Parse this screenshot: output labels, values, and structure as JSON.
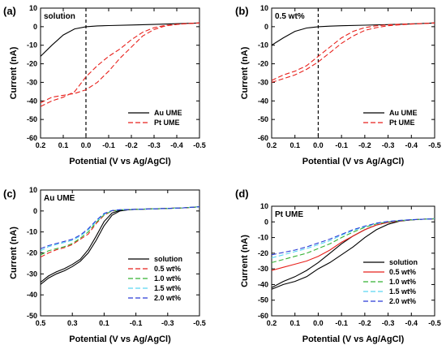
{
  "chart_data": [
    {
      "panel_label": "(a)",
      "type": "line",
      "inset_label": "solution",
      "xlabel": "Potential (V vs Ag/AgCl)",
      "ylabel": "Current (nA)",
      "xlim": [
        0.2,
        -0.5
      ],
      "ylim": [
        -60,
        10
      ],
      "xticks": [
        "0.2",
        "0.1",
        "0.0",
        "-0.1",
        "-0.2",
        "-0.3",
        "-0.4",
        "-0.5"
      ],
      "yticks": [
        "10",
        "0",
        "-10",
        "-20",
        "-30",
        "-40",
        "-50",
        "-60"
      ],
      "vline_x": 0.0,
      "legend_position": "bottom-right",
      "series": [
        {
          "name": "Au UME",
          "color": "#000000",
          "dash": "solid",
          "x": [
            0.2,
            0.15,
            0.1,
            0.05,
            0.0,
            -0.05,
            -0.1,
            -0.2,
            -0.3,
            -0.4,
            -0.5
          ],
          "y": [
            -16,
            -10,
            -4.5,
            -1.2,
            0,
            0.4,
            0.6,
            0.9,
            1.2,
            1.6,
            2.0
          ]
        },
        {
          "name": "Pt UME",
          "color": "#e8211c",
          "dash": "dashed",
          "x": [
            0.2,
            0.15,
            0.1,
            0.05,
            0.0,
            -0.05,
            -0.1,
            -0.15,
            -0.2,
            -0.25,
            -0.3,
            -0.35,
            -0.4,
            -0.45,
            -0.5
          ],
          "y": [
            -43,
            -40,
            -38,
            -35,
            -27,
            -21,
            -16,
            -12,
            -7,
            -3,
            -0.5,
            0.7,
            1.3,
            1.7,
            2.0
          ]
        },
        {
          "name": "",
          "color": "#e8211c",
          "dash": "dashed",
          "x": [
            0.2,
            0.15,
            0.1,
            0.05,
            0.0,
            -0.05,
            -0.1,
            -0.15,
            -0.2,
            -0.25,
            -0.3,
            -0.35,
            -0.4,
            -0.45,
            -0.5
          ],
          "y": [
            -41,
            -38,
            -37,
            -36,
            -34,
            -30,
            -24,
            -17,
            -11,
            -5,
            -1.5,
            0.4,
            1.2,
            1.7,
            2.0
          ]
        }
      ]
    },
    {
      "panel_label": "(b)",
      "type": "line",
      "inset_label": "0.5 wt%",
      "xlabel": "Potential (V vs Ag/AgCl)",
      "ylabel": "Current (nA)",
      "xlim": [
        0.2,
        -0.5
      ],
      "ylim": [
        -60,
        10
      ],
      "xticks": [
        "0.2",
        "0.1",
        "0.0",
        "-0.1",
        "-0.2",
        "-0.3",
        "-0.4",
        "-0.5"
      ],
      "yticks": [
        "10",
        "0",
        "-10",
        "-20",
        "-30",
        "-40",
        "-50",
        "-60"
      ],
      "vline_x": 0.0,
      "legend_position": "bottom-right",
      "series": [
        {
          "name": "Au UME",
          "color": "#000000",
          "dash": "solid",
          "x": [
            0.2,
            0.15,
            0.1,
            0.05,
            0.0,
            -0.05,
            -0.1,
            -0.2,
            -0.3,
            -0.4,
            -0.5
          ],
          "y": [
            -10,
            -6,
            -2.5,
            -0.7,
            0,
            0.3,
            0.5,
            0.8,
            1.1,
            1.5,
            2.0
          ]
        },
        {
          "name": "Pt UME",
          "color": "#e8211c",
          "dash": "dashed",
          "x": [
            0.2,
            0.15,
            0.1,
            0.05,
            0.0,
            -0.05,
            -0.1,
            -0.15,
            -0.2,
            -0.25,
            -0.3,
            -0.35,
            -0.4,
            -0.45,
            -0.5
          ],
          "y": [
            -30,
            -28,
            -26,
            -23,
            -19,
            -14,
            -9,
            -5,
            -2,
            -0.5,
            0.5,
            1.0,
            1.4,
            1.7,
            2.0
          ]
        },
        {
          "name": "",
          "color": "#e8211c",
          "dash": "dashed",
          "x": [
            0.2,
            0.15,
            0.1,
            0.05,
            0.0,
            -0.05,
            -0.1,
            -0.15,
            -0.2,
            -0.25,
            -0.3,
            -0.35,
            -0.4,
            -0.45,
            -0.5
          ],
          "y": [
            -29,
            -26,
            -24,
            -21,
            -16,
            -11,
            -6,
            -2.5,
            -0.5,
            0.5,
            1.0,
            1.3,
            1.5,
            1.7,
            2.0
          ]
        }
      ]
    },
    {
      "panel_label": "(c)",
      "type": "line",
      "inset_label": "Au UME",
      "xlabel": "Potential (V vs Ag/AgCl)",
      "ylabel": "Current (nA)",
      "xlim": [
        0.5,
        -0.5
      ],
      "ylim": [
        -50,
        10
      ],
      "xticks": [
        "0.5",
        "0.3",
        "0.1",
        "-0.1",
        "-0.3",
        "-0.5"
      ],
      "yticks": [
        "10",
        "0",
        "-10",
        "-20",
        "-30",
        "-40",
        "-50"
      ],
      "legend_position": "bottom-right",
      "series": [
        {
          "name": "solution",
          "color": "#000000",
          "dash": "solid",
          "x": [
            0.5,
            0.45,
            0.4,
            0.35,
            0.3,
            0.25,
            0.2,
            0.15,
            0.1,
            0.05,
            0.0,
            -0.05,
            -0.1,
            -0.2,
            -0.3,
            -0.4,
            -0.5
          ],
          "y": [
            -35,
            -32,
            -30,
            -28.5,
            -26.5,
            -24,
            -20,
            -14,
            -7,
            -2,
            0,
            0.5,
            0.8,
            1.0,
            1.2,
            1.5,
            2.0
          ]
        },
        {
          "name": "",
          "color": "#000000",
          "dash": "solid",
          "x": [
            0.5,
            0.45,
            0.4,
            0.35,
            0.3,
            0.25,
            0.2,
            0.15,
            0.1,
            0.05,
            0.0,
            -0.05,
            -0.1,
            -0.2,
            -0.3,
            -0.4,
            -0.5
          ],
          "y": [
            -34,
            -31,
            -29,
            -27.5,
            -25.5,
            -23,
            -18.5,
            -12,
            -5,
            -1,
            0.3,
            0.6,
            0.8,
            1.0,
            1.2,
            1.5,
            2.0
          ]
        },
        {
          "name": "0.5 wt%",
          "color": "#e8211c",
          "dash": "dashed",
          "x": [
            0.5,
            0.45,
            0.4,
            0.35,
            0.3,
            0.25,
            0.2,
            0.15,
            0.1,
            0.05,
            0.0,
            -0.1,
            -0.2,
            -0.3,
            -0.4,
            -0.5
          ],
          "y": [
            -22,
            -20,
            -18.5,
            -17.5,
            -16,
            -13.5,
            -11,
            -6,
            -2,
            0,
            0.5,
            0.8,
            1.0,
            1.2,
            1.5,
            2.0
          ]
        },
        {
          "name": "1.0 wt%",
          "color": "#34b233",
          "dash": "dashed",
          "x": [
            0.5,
            0.45,
            0.4,
            0.35,
            0.3,
            0.25,
            0.2,
            0.15,
            0.1,
            0.05,
            0.0,
            -0.1,
            -0.2,
            -0.3,
            -0.4,
            -0.5
          ],
          "y": [
            -21,
            -19,
            -18,
            -17,
            -15.5,
            -13,
            -10,
            -5.5,
            -1.8,
            0,
            0.5,
            0.8,
            1.0,
            1.2,
            1.5,
            2.0
          ]
        },
        {
          "name": "1.5 wt%",
          "color": "#5ad8f2",
          "dash": "dashed",
          "x": [
            0.5,
            0.45,
            0.4,
            0.35,
            0.3,
            0.25,
            0.2,
            0.15,
            0.1,
            0.05,
            0.0,
            -0.1,
            -0.2,
            -0.3,
            -0.4,
            -0.5
          ],
          "y": [
            -19,
            -17,
            -16,
            -15,
            -14,
            -12,
            -9,
            -5,
            -1.5,
            0.2,
            0.6,
            0.8,
            1.0,
            1.2,
            1.5,
            2.0
          ]
        },
        {
          "name": "2.0 wt%",
          "color": "#2a3bd6",
          "dash": "dashed",
          "x": [
            0.5,
            0.45,
            0.4,
            0.35,
            0.3,
            0.25,
            0.2,
            0.15,
            0.1,
            0.05,
            0.0,
            -0.1,
            -0.2,
            -0.3,
            -0.4,
            -0.5
          ],
          "y": [
            -18,
            -16.5,
            -15.5,
            -14.5,
            -13.5,
            -11.5,
            -8.5,
            -4.5,
            -1.2,
            0.2,
            0.6,
            0.8,
            1.0,
            1.2,
            1.5,
            2.0
          ]
        }
      ]
    },
    {
      "panel_label": "(d)",
      "type": "line",
      "inset_label": "Pt UME",
      "xlabel": "Potential (V vs Ag/AgCl)",
      "ylabel": "Current (nA)",
      "xlim": [
        0.2,
        -0.5
      ],
      "ylim": [
        -60,
        10
      ],
      "xticks": [
        "0.2",
        "0.1",
        "0.0",
        "-0.1",
        "-0.2",
        "-0.3",
        "-0.4",
        "-0.5"
      ],
      "yticks": [
        "10",
        "0",
        "-10",
        "-20",
        "-30",
        "-40",
        "-50",
        "-60"
      ],
      "legend_position": "bottom-right",
      "series": [
        {
          "name": "solution",
          "color": "#000000",
          "dash": "solid",
          "x": [
            0.2,
            0.15,
            0.1,
            0.05,
            0.0,
            -0.05,
            -0.1,
            -0.15,
            -0.2,
            -0.25,
            -0.3,
            -0.35,
            -0.4,
            -0.45,
            -0.5
          ],
          "y": [
            -43,
            -40,
            -38,
            -35,
            -30,
            -26,
            -21,
            -16,
            -10,
            -5,
            -1.5,
            0.5,
            1.3,
            1.7,
            2.0
          ]
        },
        {
          "name": "",
          "color": "#000000",
          "dash": "solid",
          "x": [
            0.2,
            0.15,
            0.1,
            0.05,
            0.0,
            -0.05,
            -0.1,
            -0.15,
            -0.2,
            -0.25,
            -0.3,
            -0.35,
            -0.4,
            -0.45,
            -0.5
          ],
          "y": [
            -42,
            -38,
            -35,
            -31,
            -26,
            -20,
            -14,
            -9,
            -5,
            -2,
            -0.3,
            0.7,
            1.3,
            1.7,
            2.0
          ]
        },
        {
          "name": "0.5 wt%",
          "color": "#e8211c",
          "dash": "solid",
          "x": [
            0.2,
            0.15,
            0.1,
            0.05,
            0.0,
            -0.05,
            -0.1,
            -0.15,
            -0.2,
            -0.25,
            -0.3,
            -0.35,
            -0.4,
            -0.45,
            -0.5
          ],
          "y": [
            -31,
            -29,
            -27,
            -25,
            -22,
            -18,
            -13,
            -9,
            -5,
            -2,
            -0.3,
            0.7,
            1.3,
            1.7,
            2.0
          ]
        },
        {
          "name": "1.0 wt%",
          "color": "#34b233",
          "dash": "dashed",
          "x": [
            0.2,
            0.15,
            0.1,
            0.05,
            0.0,
            -0.05,
            -0.1,
            -0.15,
            -0.2,
            -0.25,
            -0.3,
            -0.35,
            -0.4,
            -0.45,
            -0.5
          ],
          "y": [
            -26,
            -24,
            -22,
            -20,
            -17,
            -14,
            -10,
            -6.5,
            -3.5,
            -1.2,
            0,
            0.8,
            1.3,
            1.7,
            2.0
          ]
        },
        {
          "name": "1.5 wt%",
          "color": "#5ad8f2",
          "dash": "dashed",
          "x": [
            0.2,
            0.15,
            0.1,
            0.05,
            0.0,
            -0.05,
            -0.1,
            -0.15,
            -0.2,
            -0.25,
            -0.3,
            -0.35,
            -0.4,
            -0.45,
            -0.5
          ],
          "y": [
            -23,
            -21,
            -19,
            -17,
            -14.5,
            -12,
            -8.5,
            -5.5,
            -3,
            -1,
            0.2,
            0.9,
            1.4,
            1.7,
            2.0
          ]
        },
        {
          "name": "2.0 wt%",
          "color": "#2a3bd6",
          "dash": "dashed",
          "x": [
            0.2,
            0.15,
            0.1,
            0.05,
            0.0,
            -0.05,
            -0.1,
            -0.15,
            -0.2,
            -0.25,
            -0.3,
            -0.35,
            -0.4,
            -0.45,
            -0.5
          ],
          "y": [
            -21,
            -19.5,
            -18,
            -16,
            -13.5,
            -11,
            -8,
            -5,
            -2.7,
            -0.8,
            0.3,
            1.0,
            1.4,
            1.7,
            2.0
          ]
        }
      ]
    }
  ]
}
